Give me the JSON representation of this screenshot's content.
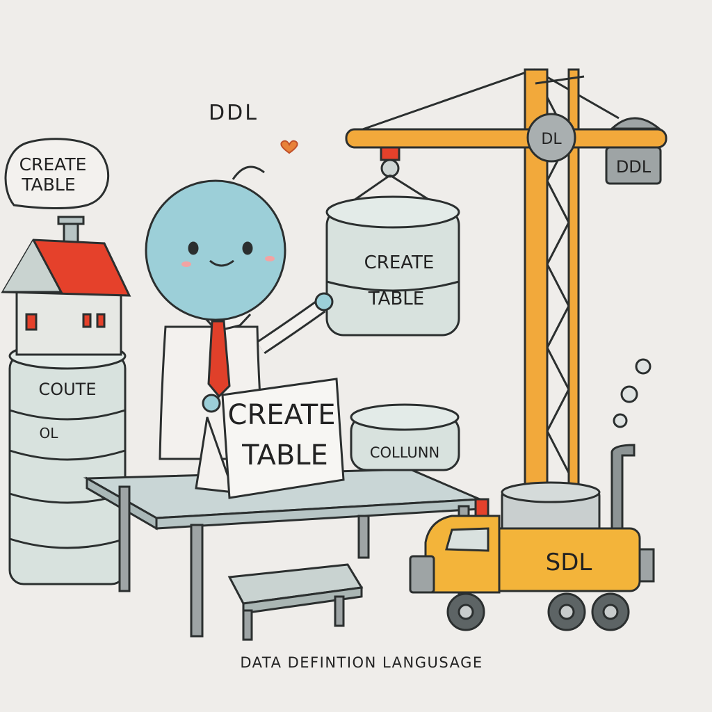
{
  "labels": {
    "title": "DDL",
    "speech_bubble_line1": "CREATE",
    "speech_bubble_line2": "TABLE",
    "stack_line1": "COUTE",
    "stack_line2": "OL",
    "hanging_line1": "CREATE",
    "hanging_line2": "TABLE",
    "sign_line1": "CREATE",
    "sign_line2": "TABLE",
    "column_label": "COLLUNN",
    "crane_hub": "DL",
    "crane_weight": "DDL",
    "truck_label": "SDL",
    "caption": "DATA DEFINTION LANGUSAGE"
  },
  "colors": {
    "background": "#efedea",
    "outline": "#2b2f2f",
    "cylinder": "#d8e2de",
    "character": "#9ccfd8",
    "roof": "#e5412b",
    "tie": "#e0402a",
    "crane": "#f2a93b",
    "truck": "#f3b43a",
    "table_top": "#c9d6d6",
    "grey_metal": "#9ea4a5"
  },
  "icons": [
    "house-icon",
    "heart-icon",
    "crane-icon",
    "truck-icon",
    "bench-icon"
  ]
}
